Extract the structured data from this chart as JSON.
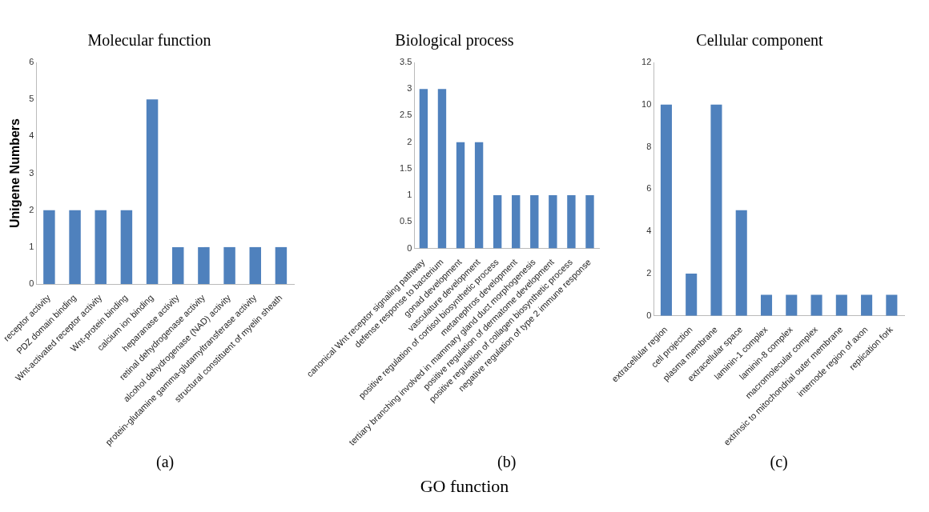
{
  "chart_data": [
    {
      "type": "bar",
      "title": "Molecular function",
      "ylabel": "Unigene Numbers",
      "xlabel": "(a)",
      "categories": [
        "receptor activity",
        "PDZ domain binding",
        "Wnt-activated receptor activity",
        "Wnt-protein binding",
        "calcium ion binding",
        "heparanase activity",
        "retinal dehydrogenase activity",
        "alcohol dehydrogenase (NAD) activity",
        "protein-glutamine gamma-glutamyltransferase activity",
        "structural constituent of myelin sheath"
      ],
      "values": [
        2,
        2,
        2,
        2,
        5,
        1,
        1,
        1,
        1,
        1
      ],
      "color": "#4f81bd",
      "ylim": [
        0,
        6
      ],
      "yticks": [
        0,
        1,
        2,
        3,
        4,
        5,
        6
      ]
    },
    {
      "type": "bar",
      "title": "Biological process",
      "xlabel": "(b)",
      "annotations": [
        "GO function"
      ],
      "categories": [
        "canonical Wnt receptor signaling pathway",
        "defense response to bacterium",
        "gonad development",
        "vasculature development",
        "positive regulation of cortisol biosynthetic process",
        "metanephros development",
        "tertiary branching involved in mammary gland duct morphogenesis",
        "positive regulation of dermatome development",
        "positive regulation of collagen biosynthetic process",
        "negative regulation of type 2 immune response"
      ],
      "values": [
        3,
        3,
        2,
        2,
        1,
        1,
        1,
        1,
        1,
        1
      ],
      "color": "#4f81bd",
      "ylim": [
        0,
        3.5
      ],
      "yticks": [
        0,
        0.5,
        1,
        1.5,
        2,
        2.5,
        3,
        3.5
      ]
    },
    {
      "type": "bar",
      "title": "Cellular component",
      "xlabel": "(c)",
      "categories": [
        "extracellular region",
        "cell projection",
        "plasma membrane",
        "extracellular space",
        "laminin-1 complex",
        "laminin-8 complex",
        "macromolecular complex",
        "extrinsic to mitochondrial outer membrane",
        "internode region of axon",
        "replication fork"
      ],
      "values": [
        10,
        2,
        10,
        5,
        1,
        1,
        1,
        1,
        1,
        1
      ],
      "color": "#4f81bd",
      "ylim": [
        0,
        12
      ],
      "yticks": [
        0,
        2,
        4,
        6,
        8,
        10,
        12
      ]
    }
  ]
}
